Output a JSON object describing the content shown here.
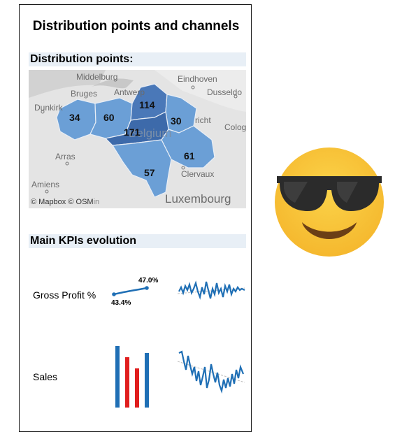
{
  "title": "Distribution points and channels",
  "sections": {
    "distribution": "Distribution points:",
    "kpis": "Main KPIs evolution"
  },
  "map": {
    "places": {
      "middelburg": "Middelburg",
      "eindhoven": "Eindhoven",
      "bruges": "Bruges",
      "antwerp": "Antwerp",
      "dusseldorf": "Dusseldo",
      "dunkirk": "Dunkirk",
      "maastricht": "richt",
      "cologne": "Colog",
      "belgium": "Belgium",
      "arras": "Arras",
      "amiens": "Amiens",
      "clervaux": "Clervaux",
      "luxembourg": "Luxembourg"
    },
    "regions": [
      {
        "id": "west",
        "count": "34",
        "color": "#6b9fd6"
      },
      {
        "id": "east-flanders",
        "count": "60",
        "color": "#6b9fd6"
      },
      {
        "id": "antwerp",
        "count": "114",
        "color": "#4a78b8"
      },
      {
        "id": "limburg",
        "count": "30",
        "color": "#6b9fd6"
      },
      {
        "id": "brabant",
        "count": "171",
        "color": "#3d6aaa"
      },
      {
        "id": "liege",
        "count": "61",
        "color": "#6b9fd6"
      },
      {
        "id": "namur",
        "count": "57",
        "color": "#6b9fd6"
      }
    ],
    "attribution": "© Mapbox © OSM",
    "attribution_tail": "in"
  },
  "kpis": {
    "gross_profit": {
      "label": "Gross Profit %",
      "start_value": "43.4%",
      "end_value": "47.0%",
      "trend_color": "#1f6fb5"
    },
    "sales": {
      "label": "Sales",
      "bar_colors": [
        "#1f6fb5",
        "#e01e1e",
        "#e01e1e",
        "#1f6fb5"
      ]
    }
  },
  "decor": {
    "emoji": "smiling-face-with-sunglasses"
  }
}
